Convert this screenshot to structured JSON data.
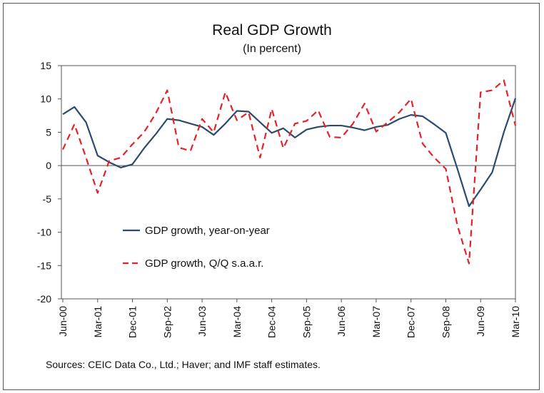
{
  "chart_data": {
    "type": "line",
    "title": "Real GDP Growth",
    "subtitle": "(In percent)",
    "ylim": [
      -20,
      15
    ],
    "yticks": [
      -20,
      -15,
      -10,
      -5,
      0,
      5,
      10,
      15
    ],
    "x_tick_labels": [
      "Jun-00",
      "Mar-01",
      "Dec-01",
      "Sep-02",
      "Jun-03",
      "Mar-04",
      "Dec-04",
      "Sep-05",
      "Jun-06",
      "Mar-07",
      "Dec-07",
      "Sep-08",
      "Jun-09",
      "Mar-10"
    ],
    "x_ticks_quarters": [
      0,
      3,
      6,
      9,
      12,
      15,
      18,
      21,
      24,
      27,
      30,
      33,
      36,
      39
    ],
    "x_quarters": [
      0,
      1,
      2,
      3,
      4,
      5,
      6,
      7,
      8,
      9,
      10,
      11,
      12,
      13,
      14,
      15,
      16,
      17,
      18,
      19,
      20,
      21,
      22,
      23,
      24,
      25,
      26,
      27,
      28,
      29,
      30,
      31,
      32,
      33,
      34,
      35,
      36,
      37,
      38,
      39
    ],
    "grid": false,
    "legend_position": "center-left",
    "series": [
      {
        "name": "GDP growth, year-on-year",
        "color": "#2b4b6b",
        "style": "solid",
        "values": [
          7.7,
          8.8,
          6.5,
          1.5,
          0.5,
          -0.3,
          0.2,
          2.6,
          4.7,
          7.0,
          6.8,
          6.3,
          5.8,
          4.6,
          6.3,
          8.2,
          8.1,
          6.5,
          4.9,
          5.6,
          4.2,
          5.4,
          5.8,
          6.0,
          6.0,
          5.7,
          5.3,
          5.8,
          6.1,
          7.0,
          7.6,
          7.4,
          6.2,
          4.9,
          -0.5,
          -6.1,
          -3.6,
          -1.0,
          5.0,
          10.1
        ]
      },
      {
        "name": "GDP growth, Q/Q s.a.a.r.",
        "color": "#e3222a",
        "style": "dashed",
        "values": [
          2.4,
          6.2,
          1.2,
          -4.1,
          0.7,
          1.2,
          3.2,
          5.0,
          7.8,
          11.3,
          2.7,
          2.2,
          7.0,
          5.0,
          11.0,
          6.8,
          8.0,
          1.2,
          8.5,
          2.6,
          6.3,
          6.7,
          8.3,
          4.3,
          4.2,
          6.3,
          9.3,
          5.1,
          6.5,
          8.0,
          10.0,
          3.3,
          1.2,
          -0.5,
          -9.0,
          -14.7,
          11.0,
          11.3,
          12.8,
          6.0
        ]
      }
    ],
    "source_note": "Sources: CEIC Data Co., Ltd.; Haver; and IMF staff estimates."
  }
}
